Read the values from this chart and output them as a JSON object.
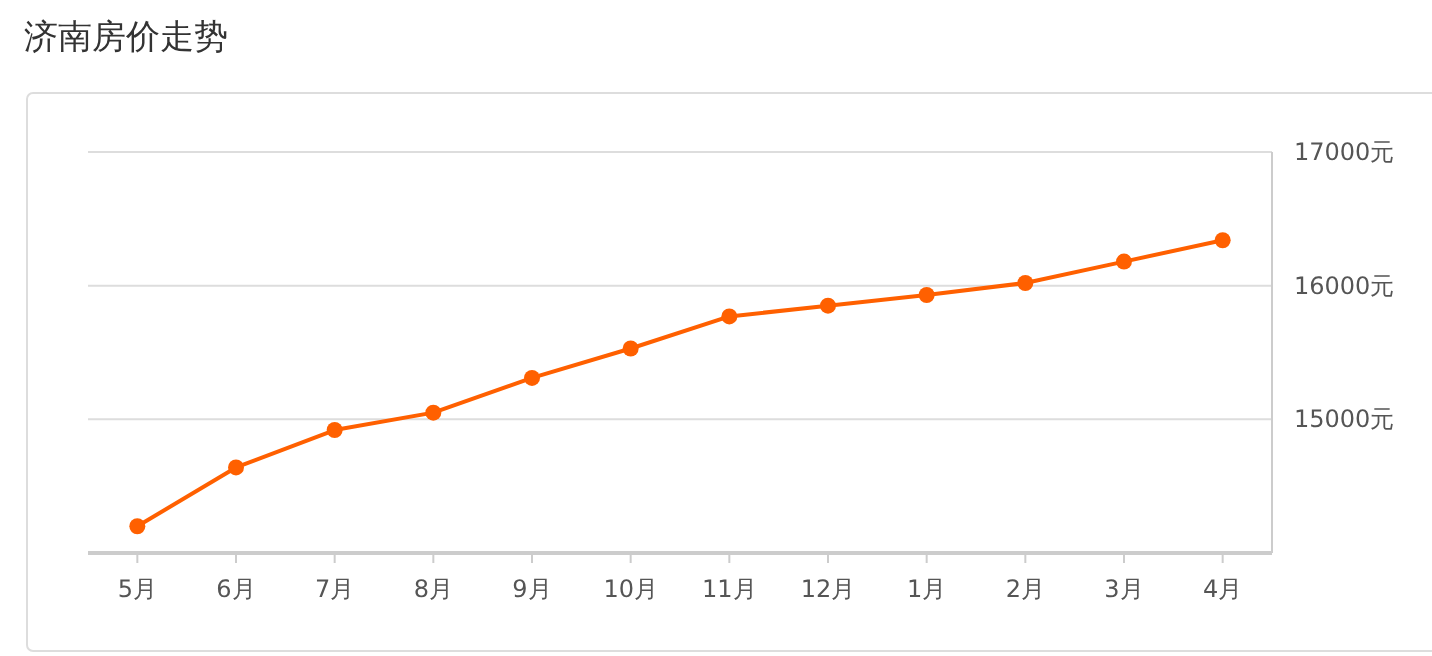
{
  "chart_data": {
    "type": "line",
    "title": "济南房价走势",
    "categories": [
      "5月",
      "6月",
      "7月",
      "8月",
      "9月",
      "10月",
      "11月",
      "12月",
      "1月",
      "2月",
      "3月",
      "4月"
    ],
    "series": [
      {
        "color": "#ff6000",
        "values": [
          14200,
          14640,
          14920,
          15050,
          15310,
          15530,
          15770,
          15850,
          15930,
          16020,
          16180,
          16340
        ]
      }
    ],
    "ylim": [
      14000,
      17000
    ],
    "yticks": [
      {
        "value": 15000,
        "label": "15000元"
      },
      {
        "value": 16000,
        "label": "16000元"
      },
      {
        "value": 17000,
        "label": "17000元"
      }
    ],
    "grid": "y",
    "marker": "circle",
    "line_style": "solid"
  }
}
